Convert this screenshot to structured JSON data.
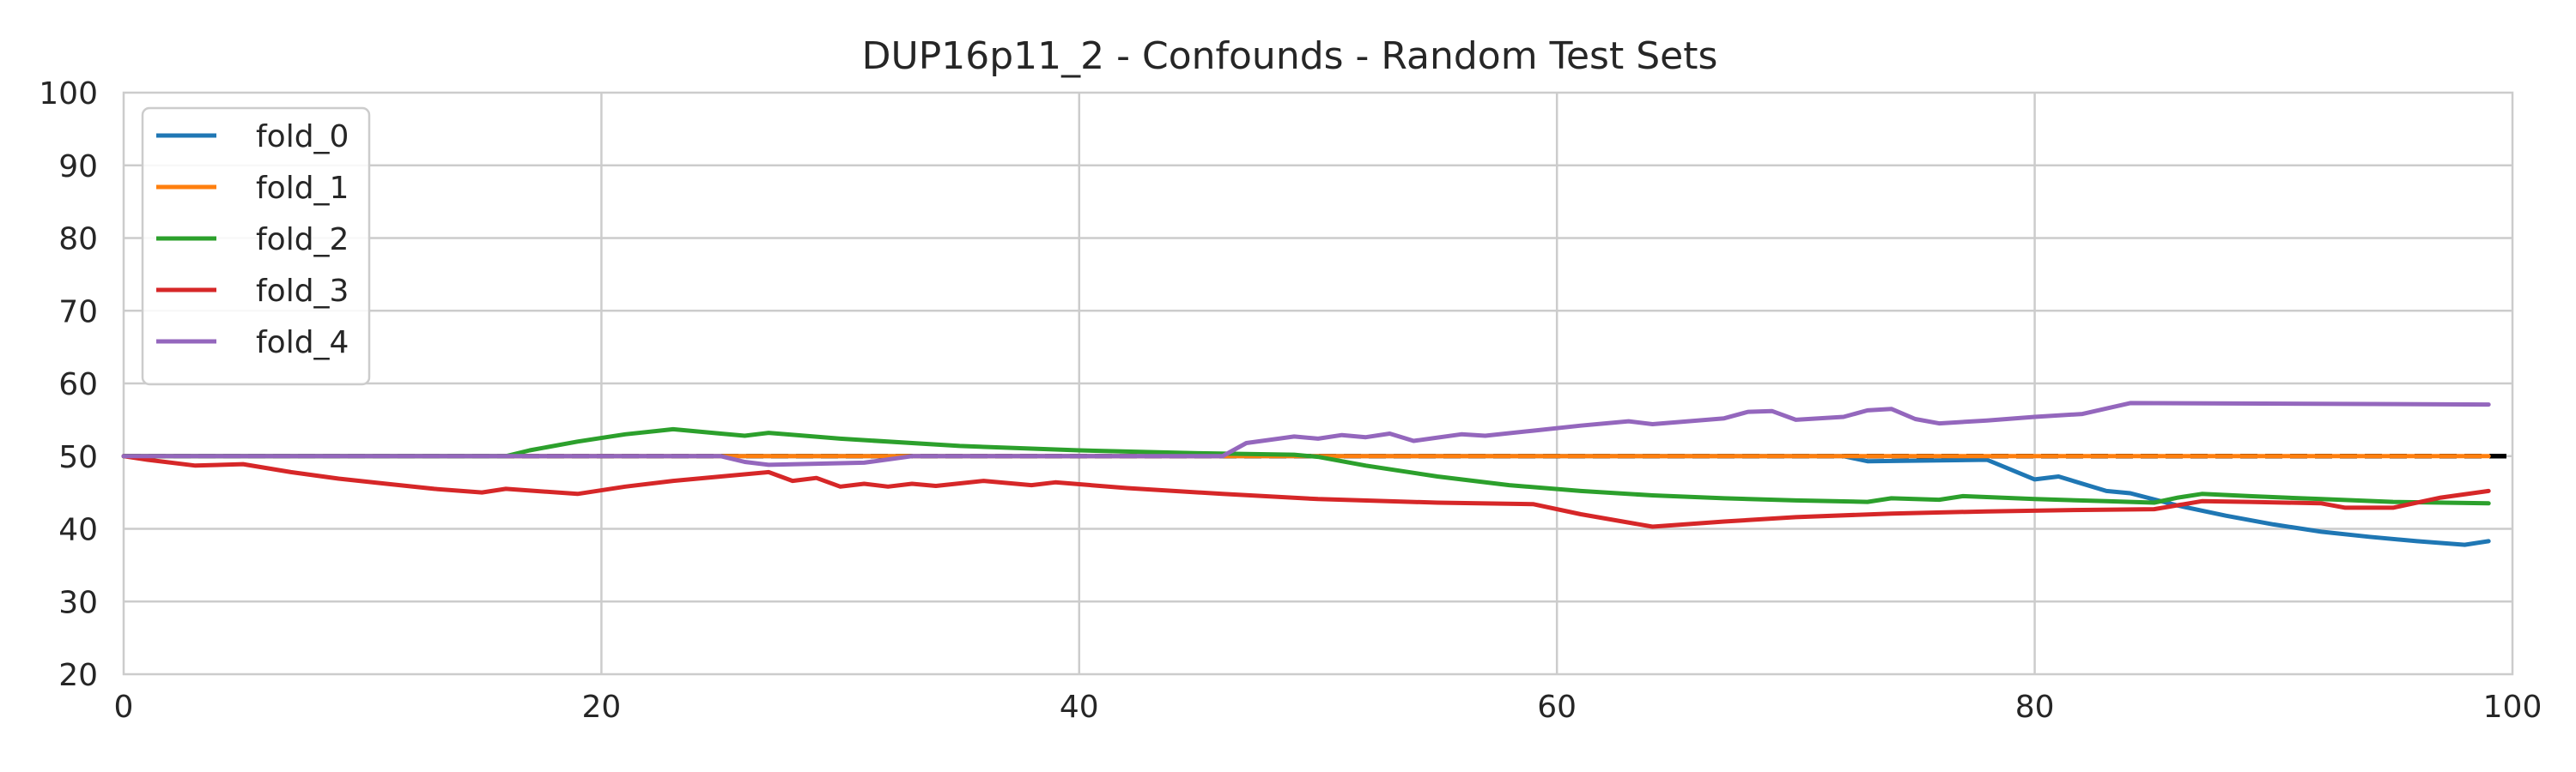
{
  "chart_data": {
    "type": "line",
    "title": "DUP16p11_2 - Confounds - Random Test Sets",
    "xlabel": "",
    "ylabel": "",
    "xlim": [
      0,
      100
    ],
    "ylim": [
      20,
      100
    ],
    "xticks": [
      0,
      20,
      40,
      60,
      80,
      100
    ],
    "yticks": [
      20,
      30,
      40,
      50,
      60,
      70,
      80,
      90,
      100
    ],
    "grid": true,
    "legend_position": "upper-left",
    "reference_line": {
      "y": 50,
      "style": "dashed",
      "color": "#000000"
    },
    "series": [
      {
        "name": "fold_0",
        "color": "#1f77b4",
        "points": [
          [
            0,
            50
          ],
          [
            72,
            50
          ],
          [
            73,
            49.3
          ],
          [
            78,
            49.5
          ],
          [
            80,
            46.8
          ],
          [
            81,
            47.2
          ],
          [
            83,
            45.2
          ],
          [
            84,
            44.9
          ],
          [
            86,
            43.2
          ],
          [
            88,
            41.8
          ],
          [
            90,
            40.6
          ],
          [
            92,
            39.6
          ],
          [
            94,
            38.9
          ],
          [
            96,
            38.3
          ],
          [
            98,
            37.8
          ],
          [
            99,
            38.3
          ]
        ]
      },
      {
        "name": "fold_1",
        "color": "#ff7f0e",
        "points": [
          [
            0,
            50
          ],
          [
            99,
            50
          ]
        ]
      },
      {
        "name": "fold_2",
        "color": "#2ca02c",
        "points": [
          [
            0,
            50
          ],
          [
            16,
            50
          ],
          [
            17,
            50.8
          ],
          [
            19,
            52
          ],
          [
            21,
            53
          ],
          [
            23,
            53.7
          ],
          [
            25,
            53.1
          ],
          [
            26,
            52.8
          ],
          [
            27,
            53.2
          ],
          [
            30,
            52.4
          ],
          [
            35,
            51.4
          ],
          [
            40,
            50.8
          ],
          [
            45,
            50.4
          ],
          [
            49,
            50.2
          ],
          [
            50,
            49.9
          ],
          [
            52,
            48.7
          ],
          [
            55,
            47.2
          ],
          [
            58,
            46
          ],
          [
            61,
            45.2
          ],
          [
            64,
            44.6
          ],
          [
            67,
            44.2
          ],
          [
            70,
            43.9
          ],
          [
            73,
            43.7
          ],
          [
            74,
            44.2
          ],
          [
            76,
            44
          ],
          [
            77,
            44.5
          ],
          [
            80,
            44.1
          ],
          [
            83,
            43.8
          ],
          [
            85,
            43.6
          ],
          [
            86,
            44.3
          ],
          [
            87,
            44.8
          ],
          [
            89,
            44.5
          ],
          [
            92,
            44.1
          ],
          [
            95,
            43.7
          ],
          [
            99,
            43.5
          ]
        ]
      },
      {
        "name": "fold_3",
        "color": "#d62728",
        "points": [
          [
            0,
            50
          ],
          [
            1,
            49.5
          ],
          [
            3,
            48.7
          ],
          [
            5,
            48.9
          ],
          [
            7,
            47.8
          ],
          [
            9,
            46.9
          ],
          [
            11,
            46.2
          ],
          [
            13,
            45.5
          ],
          [
            15,
            45
          ],
          [
            16,
            45.5
          ],
          [
            19,
            44.8
          ],
          [
            21,
            45.8
          ],
          [
            23,
            46.6
          ],
          [
            25,
            47.2
          ],
          [
            27,
            47.8
          ],
          [
            28,
            46.6
          ],
          [
            29,
            47
          ],
          [
            30,
            45.8
          ],
          [
            31,
            46.2
          ],
          [
            32,
            45.8
          ],
          [
            33,
            46.2
          ],
          [
            34,
            45.9
          ],
          [
            36,
            46.6
          ],
          [
            38,
            46
          ],
          [
            39,
            46.4
          ],
          [
            42,
            45.6
          ],
          [
            46,
            44.8
          ],
          [
            50,
            44.1
          ],
          [
            55,
            43.6
          ],
          [
            59,
            43.4
          ],
          [
            61,
            42
          ],
          [
            64,
            40.3
          ],
          [
            67,
            41
          ],
          [
            70,
            41.6
          ],
          [
            74,
            42.1
          ],
          [
            78,
            42.4
          ],
          [
            82,
            42.6
          ],
          [
            85,
            42.7
          ],
          [
            87,
            43.8
          ],
          [
            89,
            43.7
          ],
          [
            92,
            43.5
          ],
          [
            93,
            42.9
          ],
          [
            95,
            42.9
          ],
          [
            97,
            44.3
          ],
          [
            99,
            45.2
          ]
        ]
      },
      {
        "name": "fold_4",
        "color": "#9467bd",
        "points": [
          [
            0,
            50
          ],
          [
            25,
            50
          ],
          [
            26,
            49.2
          ],
          [
            27,
            48.8
          ],
          [
            31,
            49.1
          ],
          [
            33,
            50
          ],
          [
            46,
            50
          ],
          [
            47,
            51.8
          ],
          [
            49,
            52.7
          ],
          [
            50,
            52.4
          ],
          [
            51,
            52.9
          ],
          [
            52,
            52.6
          ],
          [
            53,
            53.1
          ],
          [
            54,
            52.1
          ],
          [
            56,
            53
          ],
          [
            57,
            52.8
          ],
          [
            59,
            53.5
          ],
          [
            61,
            54.2
          ],
          [
            63,
            54.8
          ],
          [
            64,
            54.4
          ],
          [
            67,
            55.2
          ],
          [
            68,
            56.1
          ],
          [
            69,
            56.2
          ],
          [
            70,
            55
          ],
          [
            72,
            55.4
          ],
          [
            73,
            56.3
          ],
          [
            74,
            56.5
          ],
          [
            75,
            55.1
          ],
          [
            76,
            54.5
          ],
          [
            78,
            54.9
          ],
          [
            80,
            55.4
          ],
          [
            82,
            55.8
          ],
          [
            84,
            57.3
          ],
          [
            99,
            57.1
          ]
        ]
      }
    ]
  }
}
